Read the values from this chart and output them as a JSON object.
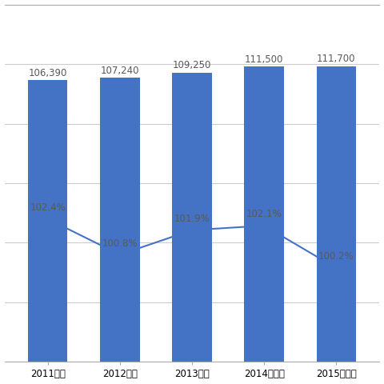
{
  "categories": [
    "2011年度",
    "2012年度",
    "2013年度",
    "2014年度予",
    "2015年度予"
  ],
  "bar_values": [
    106390,
    107240,
    109250,
    111500,
    111700
  ],
  "bar_labels": [
    "106,390",
    "107,240",
    "109,250",
    "111,500",
    "111,700"
  ],
  "line_values": [
    102.4,
    100.8,
    101.9,
    102.1,
    100.2
  ],
  "line_labels": [
    "102.4%",
    "100.8%",
    "101.9%",
    "102.1%",
    "100.2%"
  ],
  "bar_color": "#4472C4",
  "line_color": "#4472C4",
  "background_color": "#FFFFFF",
  "bar_ylim": [
    0,
    135000
  ],
  "line_ylim": [
    96.0,
    112.0
  ],
  "grid_color": "#CCCCCC",
  "text_color": "#595959",
  "bar_label_fontsize": 8.5,
  "line_label_fontsize": 8.5,
  "tick_fontsize": 8.5,
  "figsize": [
    4.8,
    4.8
  ],
  "dpi": 100
}
